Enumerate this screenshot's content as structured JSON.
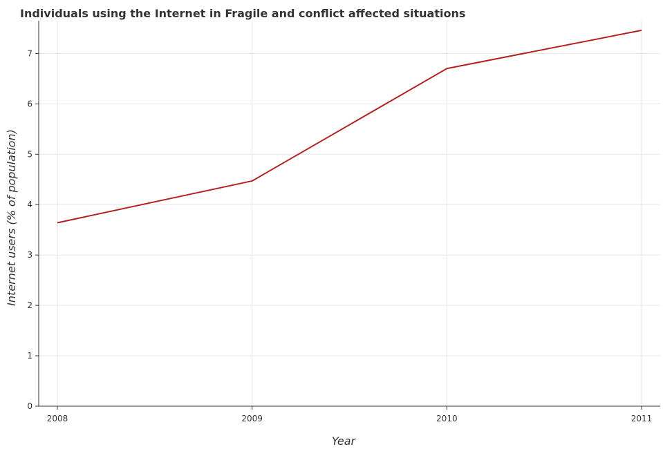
{
  "chart_data": {
    "type": "line",
    "title": "Individuals using the Internet in Fragile and conflict affected situations",
    "xlabel": "Year",
    "ylabel": "Internet users (% of population)",
    "categories": [
      "2008",
      "2009",
      "2010",
      "2011"
    ],
    "series": [
      {
        "values": [
          3.64,
          4.47,
          6.7,
          7.46
        ],
        "color": "#b22222"
      }
    ],
    "ylim": [
      0,
      7.65
    ],
    "yticks": [
      0,
      1,
      2,
      3,
      4,
      5,
      6,
      7
    ],
    "ytick_labels": [
      "0",
      "1",
      "2",
      "3",
      "4",
      "5",
      "6",
      "7"
    ],
    "grid": true,
    "legend": "none"
  }
}
